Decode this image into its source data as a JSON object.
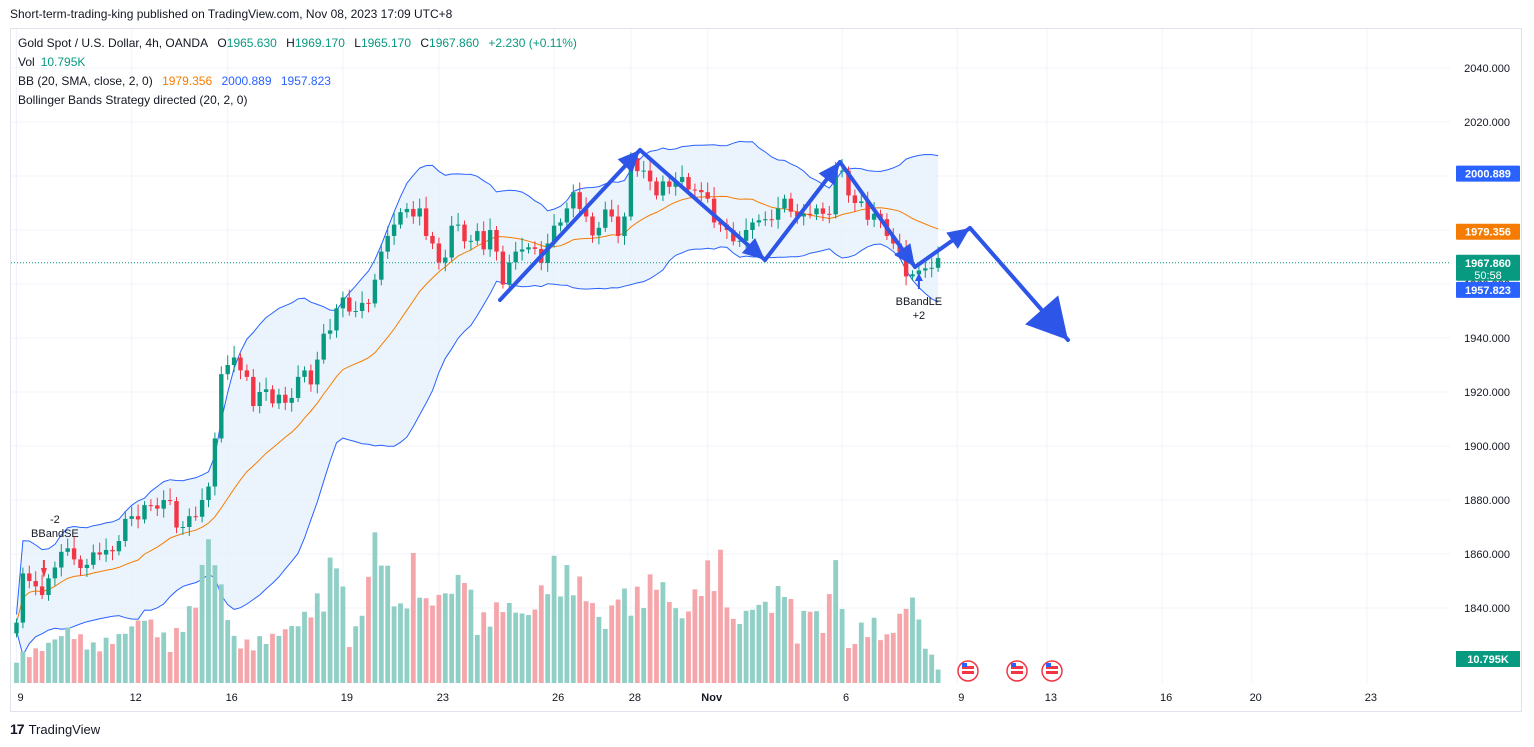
{
  "header": {
    "publisher_line": "Short-term-trading-king published on TradingView.com, Nov 08, 2023 17:09 UTC+8"
  },
  "legend": {
    "symbol": "Gold Spot / U.S. Dollar, 4h, OANDA",
    "open_label": "O",
    "open": "1965.630",
    "high_label": "H",
    "high": "1969.170",
    "low_label": "L",
    "low": "1965.170",
    "close_label": "C",
    "close": "1967.860",
    "change": "+2.230 (+0.11%)",
    "vol_label": "Vol",
    "vol": "10.795K",
    "bb_label": "BB (20, SMA, close, 2, 0)",
    "bb_basis": "1979.356",
    "bb_upper": "2000.889",
    "bb_lower": "1957.823",
    "strategy_label": "Bollinger Bands Strategy directed (20, 2, 0)"
  },
  "footer": {
    "brand": "TradingView"
  },
  "colors": {
    "up": "#089981",
    "down": "#f23645",
    "vol_up": "#8fcfc5",
    "vol_down": "#f5a6ab",
    "bb_band": "#2962ff",
    "bb_basis": "#f57c00",
    "bb_fill": "#e3f0fb",
    "arrow": "#2d55e8",
    "grid": "#f0f3fa"
  },
  "chart_data": {
    "type": "candlestick",
    "timeframe": "4h",
    "y_axis": {
      "ticks": [
        1840,
        1860,
        1880,
        1900,
        1920,
        1940,
        1960,
        1980,
        2000,
        2020,
        2040
      ],
      "range": [
        1831,
        2050
      ]
    },
    "x_axis": {
      "labels": [
        {
          "label": "9",
          "index": 0
        },
        {
          "label": "12",
          "index": 18
        },
        {
          "label": "16",
          "index": 33
        },
        {
          "label": "19",
          "index": 51
        },
        {
          "label": "23",
          "index": 66
        },
        {
          "label": "26",
          "index": 84
        },
        {
          "label": "28",
          "index": 96
        },
        {
          "label": "Nov",
          "index": 108
        },
        {
          "label": "6",
          "index": 129
        },
        {
          "label": "9",
          "index": 147
        },
        {
          "label": "13",
          "index": 161
        },
        {
          "label": "16",
          "index": 179
        },
        {
          "label": "20",
          "index": 193
        },
        {
          "label": "23",
          "index": 211
        }
      ]
    },
    "price_labels": [
      {
        "value": "2000.889",
        "price": 2000.889,
        "color": "#2962ff"
      },
      {
        "value": "1979.356",
        "price": 1979.356,
        "color": "#f57c00"
      },
      {
        "value": "1967.860",
        "price": 1967.86,
        "color": "#089981",
        "countdown": "50:58"
      },
      {
        "value": "1957.823",
        "price": 1957.823,
        "color": "#2962ff"
      }
    ],
    "volume_label": {
      "value": "10.795K",
      "color": "#089981"
    },
    "signals": [
      {
        "name": "BBandSE",
        "qty": "-2",
        "index": 6,
        "price": 1860,
        "side": "sell"
      },
      {
        "name": "BBandLE",
        "qty": "+2",
        "index": 141,
        "price": 1958,
        "side": "buy"
      }
    ],
    "close_anchors": [
      [
        0,
        1833
      ],
      [
        1,
        1855
      ],
      [
        2,
        1850
      ],
      [
        3,
        1848
      ],
      [
        4,
        1847
      ],
      [
        5,
        1851
      ],
      [
        6,
        1855
      ],
      [
        7,
        1863
      ],
      [
        9,
        1858
      ],
      [
        11,
        1856
      ],
      [
        13,
        1862
      ],
      [
        15,
        1861
      ],
      [
        17,
        1873
      ],
      [
        19,
        1875
      ],
      [
        21,
        1878
      ],
      [
        23,
        1880
      ],
      [
        24,
        1878
      ],
      [
        25,
        1872
      ],
      [
        26,
        1870
      ],
      [
        27,
        1874
      ],
      [
        28,
        1876
      ],
      [
        29,
        1880
      ],
      [
        30,
        1885
      ],
      [
        31,
        1905
      ],
      [
        32,
        1925
      ],
      [
        33,
        1930
      ],
      [
        34,
        1935
      ],
      [
        35,
        1928
      ],
      [
        36,
        1924
      ],
      [
        37,
        1917
      ],
      [
        38,
        1920
      ],
      [
        39,
        1921
      ],
      [
        40,
        1918
      ],
      [
        41,
        1919
      ],
      [
        42,
        1916
      ],
      [
        43,
        1920
      ],
      [
        44,
        1924
      ],
      [
        45,
        1928
      ],
      [
        46,
        1925
      ],
      [
        47,
        1932
      ],
      [
        48,
        1940
      ],
      [
        49,
        1945
      ],
      [
        50,
        1951
      ],
      [
        51,
        1955
      ],
      [
        52,
        1952
      ],
      [
        53,
        1950
      ],
      [
        54,
        1953
      ],
      [
        55,
        1955
      ],
      [
        56,
        1960
      ],
      [
        57,
        1972
      ],
      [
        58,
        1980
      ],
      [
        59,
        1982
      ],
      [
        60,
        1985
      ],
      [
        61,
        1990
      ],
      [
        62,
        1985
      ],
      [
        63,
        1988
      ],
      [
        64,
        1980
      ],
      [
        65,
        1975
      ],
      [
        66,
        1968
      ],
      [
        67,
        1972
      ],
      [
        68,
        1980
      ],
      [
        69,
        1982
      ],
      [
        70,
        1978
      ],
      [
        71,
        1976
      ],
      [
        72,
        1978
      ],
      [
        73,
        1975
      ],
      [
        74,
        1980
      ],
      [
        75,
        1972
      ],
      [
        76,
        1962
      ],
      [
        77,
        1968
      ],
      [
        78,
        1972
      ],
      [
        79,
        1975
      ],
      [
        80,
        1972
      ],
      [
        81,
        1973
      ],
      [
        82,
        1970
      ],
      [
        83,
        1975
      ],
      [
        84,
        1980
      ],
      [
        85,
        1985
      ],
      [
        86,
        1988
      ],
      [
        87,
        1994
      ],
      [
        88,
        1990
      ],
      [
        89,
        1985
      ],
      [
        90,
        1978
      ],
      [
        91,
        1983
      ],
      [
        92,
        1986
      ],
      [
        93,
        1985
      ],
      [
        94,
        1980
      ],
      [
        95,
        1985
      ],
      [
        96,
        2005
      ],
      [
        97,
        2004
      ],
      [
        98,
        2002
      ],
      [
        99,
        1998
      ],
      [
        100,
        1995
      ],
      [
        101,
        1998
      ],
      [
        102,
        1996
      ],
      [
        103,
        2000
      ],
      [
        104,
        1998
      ],
      [
        105,
        1995
      ],
      [
        106,
        1997
      ],
      [
        107,
        1994
      ],
      [
        108,
        1990
      ],
      [
        109,
        1985
      ],
      [
        110,
        1982
      ],
      [
        111,
        1980
      ],
      [
        112,
        1978
      ],
      [
        113,
        1976
      ],
      [
        114,
        1980
      ],
      [
        115,
        1985
      ],
      [
        116,
        1982
      ],
      [
        117,
        1984
      ],
      [
        118,
        1986
      ],
      [
        119,
        1988
      ],
      [
        120,
        1990
      ],
      [
        121,
        1989
      ],
      [
        122,
        1985
      ],
      [
        123,
        1986
      ],
      [
        124,
        1988
      ],
      [
        125,
        1988
      ],
      [
        126,
        1986
      ],
      [
        127,
        1988
      ],
      [
        128,
        2000
      ],
      [
        129,
        2002
      ],
      [
        130,
        1995
      ],
      [
        131,
        1990
      ],
      [
        132,
        1989
      ],
      [
        133,
        1986
      ],
      [
        134,
        1986
      ],
      [
        135,
        1984
      ],
      [
        136,
        1980
      ],
      [
        137,
        1975
      ],
      [
        138,
        1972
      ],
      [
        139,
        1965
      ],
      [
        140,
        1962
      ],
      [
        141,
        1965
      ],
      [
        142,
        1968
      ],
      [
        143,
        1966
      ],
      [
        144,
        1968
      ]
    ],
    "volume_anchors": [
      [
        0,
        20
      ],
      [
        4,
        26
      ],
      [
        8,
        40
      ],
      [
        12,
        28
      ],
      [
        16,
        35
      ],
      [
        20,
        50
      ],
      [
        24,
        30
      ],
      [
        28,
        62
      ],
      [
        30,
        110
      ],
      [
        34,
        33
      ],
      [
        36,
        30
      ],
      [
        40,
        35
      ],
      [
        44,
        45
      ],
      [
        48,
        68
      ],
      [
        50,
        105
      ],
      [
        52,
        30
      ],
      [
        54,
        52
      ],
      [
        56,
        110
      ],
      [
        60,
        55
      ],
      [
        62,
        90
      ],
      [
        64,
        60
      ],
      [
        68,
        70
      ],
      [
        70,
        85
      ],
      [
        72,
        45
      ],
      [
        76,
        60
      ],
      [
        80,
        50
      ],
      [
        84,
        88
      ],
      [
        88,
        75
      ],
      [
        92,
        42
      ],
      [
        94,
        70
      ],
      [
        96,
        62
      ],
      [
        100,
        80
      ],
      [
        104,
        48
      ],
      [
        108,
        85
      ],
      [
        110,
        92
      ],
      [
        112,
        45
      ],
      [
        116,
        60
      ],
      [
        118,
        58
      ],
      [
        120,
        78
      ],
      [
        122,
        38
      ],
      [
        124,
        62
      ],
      [
        126,
        40
      ],
      [
        128,
        92
      ],
      [
        130,
        25
      ],
      [
        132,
        42
      ],
      [
        134,
        45
      ],
      [
        136,
        34
      ],
      [
        138,
        50
      ],
      [
        140,
        65
      ],
      [
        142,
        28
      ],
      [
        144,
        12
      ]
    ]
  }
}
